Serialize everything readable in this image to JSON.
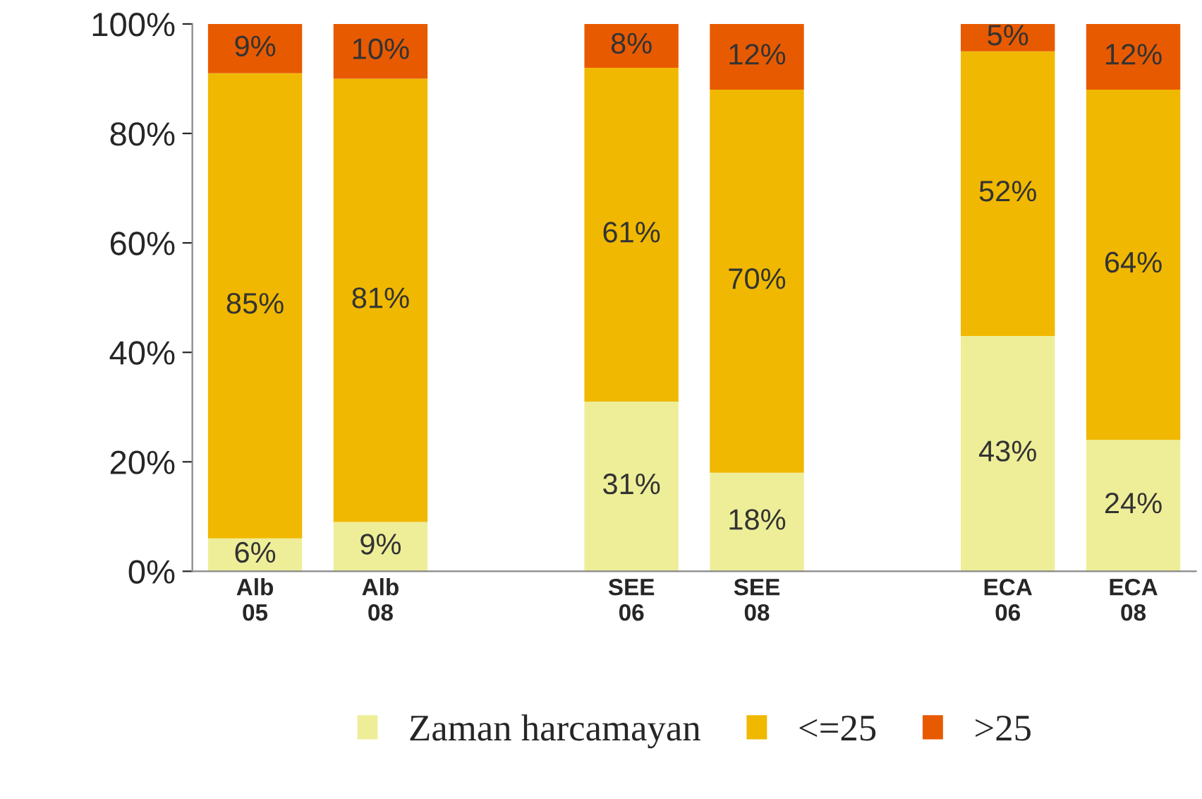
{
  "chart_data": {
    "type": "bar",
    "stacked": true,
    "categories": [
      "Alb\n05",
      "Alb\n08",
      null,
      "SEE\n06",
      "SEE\n08",
      null,
      "ECA\n06",
      "ECA\n08"
    ],
    "series": [
      {
        "name": "Zaman harcamayan",
        "color": "#eeee99",
        "values": [
          6,
          9,
          null,
          31,
          18,
          null,
          43,
          24
        ],
        "value_labels": [
          "6%",
          "9%",
          null,
          "31%",
          "18%",
          null,
          "43%",
          "24%"
        ]
      },
      {
        "name": "<=25",
        "color": "#f0b800",
        "values": [
          85,
          81,
          null,
          61,
          70,
          null,
          52,
          64
        ],
        "value_labels": [
          "85%",
          "81%",
          null,
          "61%",
          "70%",
          null,
          "52%",
          "64%"
        ]
      },
      {
        "name": ">25",
        "color": "#e85a00",
        "values": [
          9,
          10,
          null,
          8,
          12,
          null,
          5,
          12
        ],
        "value_labels": [
          "9%",
          "10%",
          null,
          "8%",
          "12%",
          null,
          "5%",
          "12%"
        ]
      }
    ],
    "ylim": [
      0,
      100
    ],
    "yticks": [
      {
        "value": 0,
        "label": "0%"
      },
      {
        "value": 20,
        "label": "20%"
      },
      {
        "value": 40,
        "label": "40%"
      },
      {
        "value": 60,
        "label": "60%"
      },
      {
        "value": 80,
        "label": "80%"
      },
      {
        "value": 100,
        "label": "100%"
      }
    ],
    "legend": "bottom"
  }
}
